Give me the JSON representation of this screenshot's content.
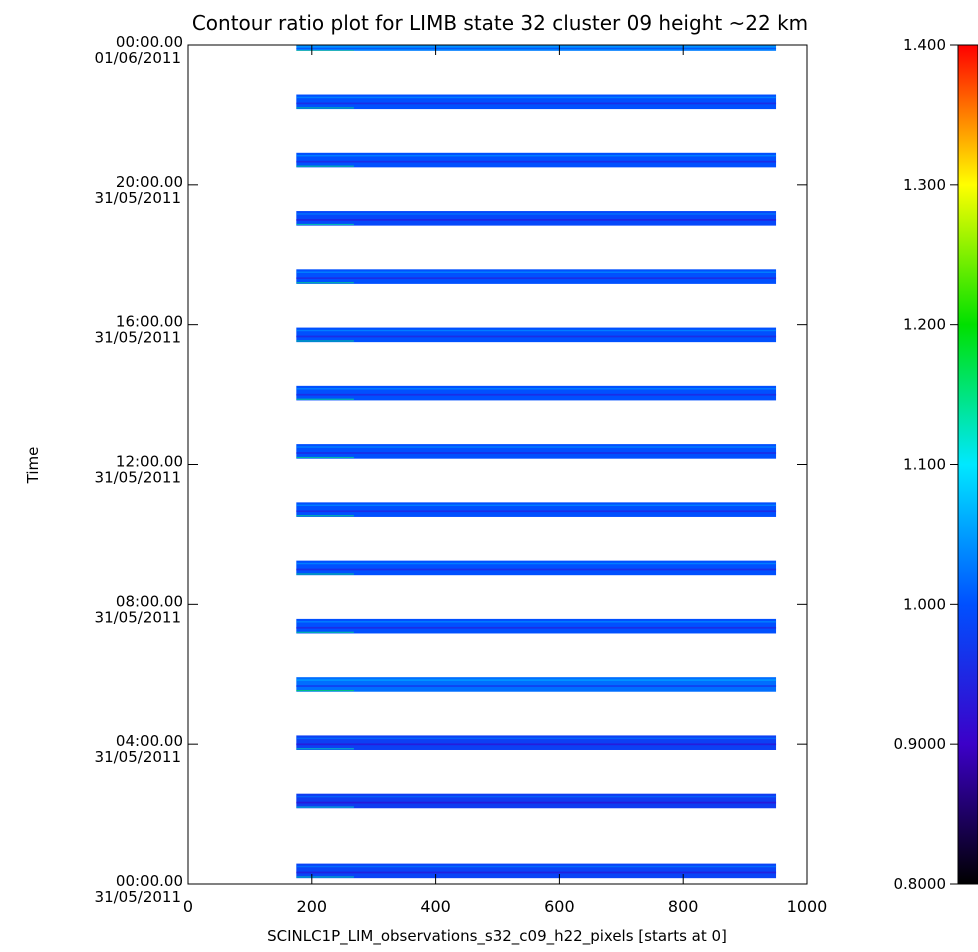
{
  "chart_data": {
    "type": "heatmap",
    "title": "Contour ratio plot for LIMB state 32 cluster 09 height ~22 km",
    "xlabel": "SCINLC1P_LIM_observations_s32_c09_h22_pixels [starts at 0]",
    "ylabel": "Time",
    "xlim": [
      0,
      1000
    ],
    "ylim": [
      "31/05/2011 00:00:00",
      "01/06/2011 00:00:00"
    ],
    "x_ticks": [
      {
        "value": 0,
        "label": "0"
      },
      {
        "value": 200,
        "label": "200"
      },
      {
        "value": 400,
        "label": "400"
      },
      {
        "value": 600,
        "label": "600"
      },
      {
        "value": 800,
        "label": "800"
      },
      {
        "value": 1000,
        "label": "1000"
      }
    ],
    "y_ticks": [
      {
        "hours": 0,
        "time": "00:00.00",
        "date": "31/05/2011"
      },
      {
        "hours": 4,
        "time": "04:00.00",
        "date": "31/05/2011"
      },
      {
        "hours": 8,
        "time": "08:00.00",
        "date": "31/05/2011"
      },
      {
        "hours": 12,
        "time": "12:00.00",
        "date": "31/05/2011"
      },
      {
        "hours": 16,
        "time": "16:00.00",
        "date": "31/05/2011"
      },
      {
        "hours": 20,
        "time": "20:00.00",
        "date": "31/05/2011"
      },
      {
        "hours": 24,
        "time": "00:00.00",
        "date": "01/06/2011"
      }
    ],
    "pixel_range": [
      175,
      950
    ],
    "orbit_bands": [
      {
        "start": "31/05/2011 00:10",
        "end": "31/05/2011 00:35",
        "ratio": 0.985
      },
      {
        "start": "31/05/2011 02:10",
        "end": "31/05/2011 02:35",
        "ratio": 0.975
      },
      {
        "start": "31/05/2011 03:50",
        "end": "31/05/2011 04:15",
        "ratio": 0.98
      },
      {
        "start": "31/05/2011 05:30",
        "end": "31/05/2011 05:55",
        "ratio": 1.02
      },
      {
        "start": "31/05/2011 07:10",
        "end": "31/05/2011 07:35",
        "ratio": 1.0
      },
      {
        "start": "31/05/2011 08:50",
        "end": "31/05/2011 09:15",
        "ratio": 1.0
      },
      {
        "start": "31/05/2011 10:30",
        "end": "31/05/2011 10:55",
        "ratio": 1.0
      },
      {
        "start": "31/05/2011 12:10",
        "end": "31/05/2011 12:35",
        "ratio": 1.0
      },
      {
        "start": "31/05/2011 13:50",
        "end": "31/05/2011 14:15",
        "ratio": 1.0
      },
      {
        "start": "31/05/2011 15:30",
        "end": "31/05/2011 15:55",
        "ratio": 1.0
      },
      {
        "start": "31/05/2011 17:10",
        "end": "31/05/2011 17:35",
        "ratio": 1.0
      },
      {
        "start": "31/05/2011 18:50",
        "end": "31/05/2011 19:15",
        "ratio": 0.99
      },
      {
        "start": "31/05/2011 20:30",
        "end": "31/05/2011 20:55",
        "ratio": 1.0
      },
      {
        "start": "31/05/2011 22:10",
        "end": "31/05/2011 22:35",
        "ratio": 1.0
      },
      {
        "start": "31/05/2011 23:50",
        "end": "01/06/2011 00:00",
        "ratio": 1.03
      }
    ],
    "colorbar": {
      "range": [
        0.8,
        1.4
      ],
      "ticks": [
        "1.400",
        "1.300",
        "1.200",
        "1.100",
        "1.000",
        "0.9000",
        "0.8000"
      ],
      "colormap": "rainbow",
      "stops": [
        {
          "value": 0.8,
          "color": "#000000"
        },
        {
          "value": 0.9,
          "color": "#3c00c8"
        },
        {
          "value": 1.0,
          "color": "#0050ff"
        },
        {
          "value": 1.1,
          "color": "#00e8ff"
        },
        {
          "value": 1.2,
          "color": "#00e000"
        },
        {
          "value": 1.3,
          "color": "#ffff00"
        },
        {
          "value": 1.4,
          "color": "#ff0000"
        }
      ]
    },
    "grid": false,
    "legend": "colorbar-right"
  }
}
